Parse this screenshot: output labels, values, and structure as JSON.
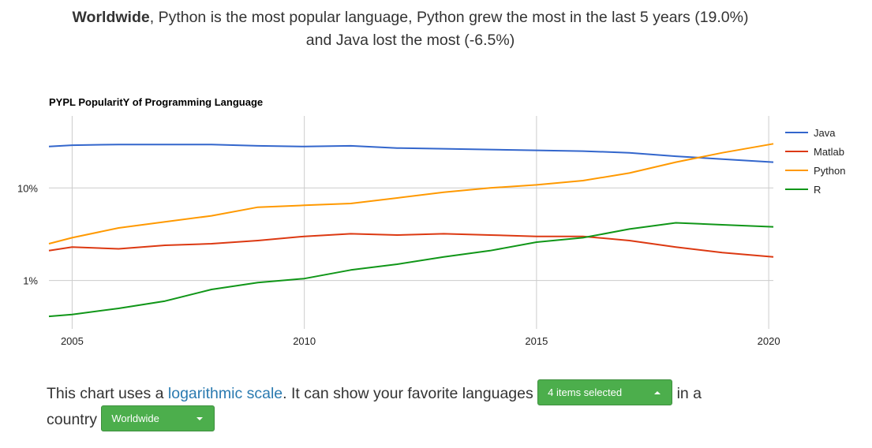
{
  "headline": {
    "bold": "Worldwide",
    "line1_rest": ", Python is the most popular language, Python grew the most in the last 5 years (19.0%)",
    "line2": "and Java lost the most (-6.5%)"
  },
  "chart_data": {
    "type": "line",
    "title": "PYPL PopularitY of Programming Language",
    "xlabel": "",
    "ylabel": "",
    "y_scale": "log",
    "xlim": [
      2004.5,
      2020.1
    ],
    "ylim": [
      0.3,
      60
    ],
    "x_ticks": [
      "2005",
      "2010",
      "2015",
      "2020"
    ],
    "y_ticks": [
      "10%",
      "1%"
    ],
    "grid": true,
    "legend_position": "right",
    "series": [
      {
        "name": "Java",
        "color": "#3366cc",
        "x": [
          2004.5,
          2005,
          2006,
          2007,
          2008,
          2009,
          2010,
          2011,
          2012,
          2013,
          2014,
          2015,
          2016,
          2017,
          2018,
          2019,
          2020.1
        ],
        "y": [
          28,
          29,
          29.5,
          29.5,
          29.5,
          28.5,
          28,
          28.5,
          27,
          26.5,
          26,
          25.5,
          25,
          24,
          22,
          20.5,
          19
        ]
      },
      {
        "name": "Matlab",
        "color": "#dc3912",
        "x": [
          2004.5,
          2005,
          2006,
          2007,
          2008,
          2009,
          2010,
          2011,
          2012,
          2013,
          2014,
          2015,
          2016,
          2017,
          2018,
          2019,
          2020.1
        ],
        "y": [
          2.1,
          2.3,
          2.2,
          2.4,
          2.5,
          2.7,
          3.0,
          3.2,
          3.1,
          3.2,
          3.1,
          3.0,
          3.0,
          2.7,
          2.3,
          2.0,
          1.8
        ]
      },
      {
        "name": "Python",
        "color": "#ff9900",
        "x": [
          2004.5,
          2005,
          2006,
          2007,
          2008,
          2009,
          2010,
          2011,
          2012,
          2013,
          2014,
          2015,
          2016,
          2017,
          2018,
          2019,
          2020.1
        ],
        "y": [
          2.5,
          2.9,
          3.7,
          4.3,
          5.0,
          6.2,
          6.5,
          6.8,
          7.8,
          9.0,
          10.0,
          10.8,
          12.0,
          14.5,
          19.0,
          24.0,
          30.0
        ]
      },
      {
        "name": "R",
        "color": "#109618",
        "x": [
          2004.5,
          2005,
          2006,
          2007,
          2008,
          2009,
          2010,
          2011,
          2012,
          2013,
          2014,
          2015,
          2016,
          2017,
          2018,
          2019,
          2020.1
        ],
        "y": [
          0.41,
          0.43,
          0.5,
          0.6,
          0.8,
          0.95,
          1.05,
          1.3,
          1.5,
          1.8,
          2.1,
          2.6,
          2.9,
          3.6,
          4.2,
          4.0,
          3.8
        ]
      }
    ]
  },
  "footer": {
    "text_before_link": "This chart uses a ",
    "link": "logarithmic scale",
    "text_after_link": ". It can show your favorite languages ",
    "languages_dropdown": "4 items selected",
    "text_middle": " in a",
    "text_country": "country ",
    "country_dropdown": "Worldwide"
  },
  "colors": {
    "dropdown": "#4cae4c",
    "link": "#2a7ab0"
  }
}
